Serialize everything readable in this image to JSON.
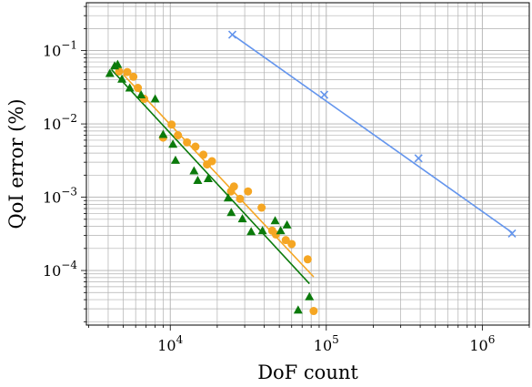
{
  "chart_data": {
    "type": "scatter",
    "title": "",
    "xlabel": "DoF count",
    "ylabel": "QoI error (%)",
    "xscale": "log",
    "yscale": "log",
    "xlim": [
      2900,
      2000000
    ],
    "ylim": [
      1.8e-05,
      0.45
    ],
    "grid": true,
    "legend": "none",
    "x_ticks": [
      {
        "value": 10000,
        "base": "10",
        "exp": "4"
      },
      {
        "value": 100000,
        "base": "10",
        "exp": "5"
      },
      {
        "value": 1000000,
        "base": "10",
        "exp": "6"
      }
    ],
    "y_ticks": [
      {
        "value": 0.1,
        "base": "10",
        "exp": "−1"
      },
      {
        "value": 0.01,
        "base": "10",
        "exp": "−2"
      },
      {
        "value": 0.001,
        "base": "10",
        "exp": "−3"
      },
      {
        "value": 0.0001,
        "base": "10",
        "exp": "−4"
      }
    ],
    "series": [
      {
        "color": "#6495ED",
        "marker": "x",
        "points": [
          [
            25000,
            0.165
          ],
          [
            97000,
            0.025
          ],
          [
            390000,
            0.0034
          ],
          [
            1550000,
            0.00032
          ]
        ],
        "fit_line": [
          [
            25000,
            0.165
          ],
          [
            1550000,
            0.00033
          ]
        ]
      },
      {
        "color": "#F5A623",
        "marker": "circle",
        "points": [
          [
            4700,
            0.052
          ],
          [
            5300,
            0.051
          ],
          [
            5800,
            0.044
          ],
          [
            6200,
            0.031
          ],
          [
            6800,
            0.022
          ],
          [
            9000,
            0.0065
          ],
          [
            10200,
            0.0098
          ],
          [
            11200,
            0.007
          ],
          [
            12800,
            0.0056
          ],
          [
            14500,
            0.0049
          ],
          [
            16300,
            0.0038
          ],
          [
            17200,
            0.0028
          ],
          [
            18500,
            0.0031
          ],
          [
            24500,
            0.0012
          ],
          [
            25600,
            0.0014
          ],
          [
            28000,
            0.00095
          ],
          [
            31500,
            0.0012
          ],
          [
            38500,
            0.00072
          ],
          [
            45000,
            0.00035
          ],
          [
            47500,
            0.00031
          ],
          [
            55000,
            0.00026
          ],
          [
            60000,
            0.00023
          ],
          [
            76000,
            0.000142
          ],
          [
            83000,
            2.8e-05
          ]
        ],
        "fit_line": [
          [
            5000,
            0.047
          ],
          [
            83000,
            8.2e-05
          ]
        ]
      },
      {
        "color": "#0B7A0B",
        "marker": "triangle",
        "points": [
          [
            4100,
            0.049
          ],
          [
            4400,
            0.062
          ],
          [
            4600,
            0.065
          ],
          [
            4900,
            0.041
          ],
          [
            5500,
            0.031
          ],
          [
            6500,
            0.025
          ],
          [
            8000,
            0.022
          ],
          [
            9000,
            0.0072
          ],
          [
            10400,
            0.0053
          ],
          [
            10800,
            0.0032
          ],
          [
            14200,
            0.0023
          ],
          [
            15000,
            0.0017
          ],
          [
            17500,
            0.0018
          ],
          [
            23500,
            0.00098
          ],
          [
            24600,
            0.00062
          ],
          [
            29000,
            0.00051
          ],
          [
            33000,
            0.00034
          ],
          [
            39000,
            0.00035
          ],
          [
            47000,
            0.00048
          ],
          [
            51000,
            0.00035
          ],
          [
            56000,
            0.00042
          ],
          [
            66000,
            2.9e-05
          ],
          [
            78000,
            4.4e-05
          ]
        ],
        "fit_line": [
          [
            4200,
            0.055
          ],
          [
            78000,
            6.6e-05
          ]
        ]
      }
    ]
  }
}
